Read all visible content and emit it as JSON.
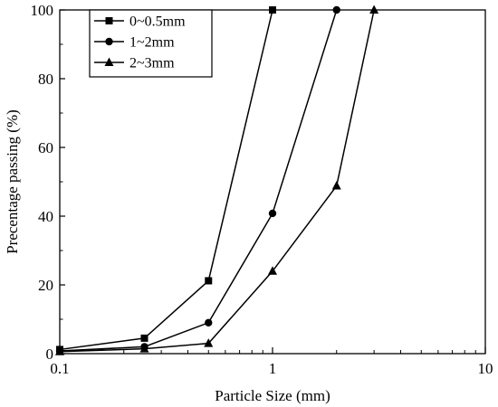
{
  "chart_data": {
    "type": "line",
    "title": "",
    "xlabel": "Particle Size (mm)",
    "ylabel": "Precentage passing (%)",
    "xscale": "log",
    "xlim": [
      0.1,
      10
    ],
    "ylim": [
      0,
      100
    ],
    "x_ticks": [
      "0.1",
      "1",
      "10"
    ],
    "y_ticks": [
      "0",
      "20",
      "40",
      "60",
      "80",
      "100"
    ],
    "grid": false,
    "legend_position": "top-left",
    "series": [
      {
        "name": "0~0.5mm",
        "marker": "square",
        "color": "#000000",
        "x": [
          0.1,
          0.25,
          0.5,
          1
        ],
        "y": [
          1.2,
          4.5,
          21.2,
          100
        ]
      },
      {
        "name": "1~2mm",
        "marker": "circle",
        "color": "#000000",
        "x": [
          0.1,
          0.25,
          0.5,
          1,
          2
        ],
        "y": [
          0.8,
          2.0,
          9.0,
          40.8,
          100
        ]
      },
      {
        "name": "2~3mm",
        "marker": "triangle",
        "color": "#000000",
        "x": [
          0.1,
          0.25,
          0.5,
          1,
          2,
          3
        ],
        "y": [
          0.6,
          1.4,
          3.0,
          24.0,
          48.8,
          100
        ]
      }
    ]
  }
}
